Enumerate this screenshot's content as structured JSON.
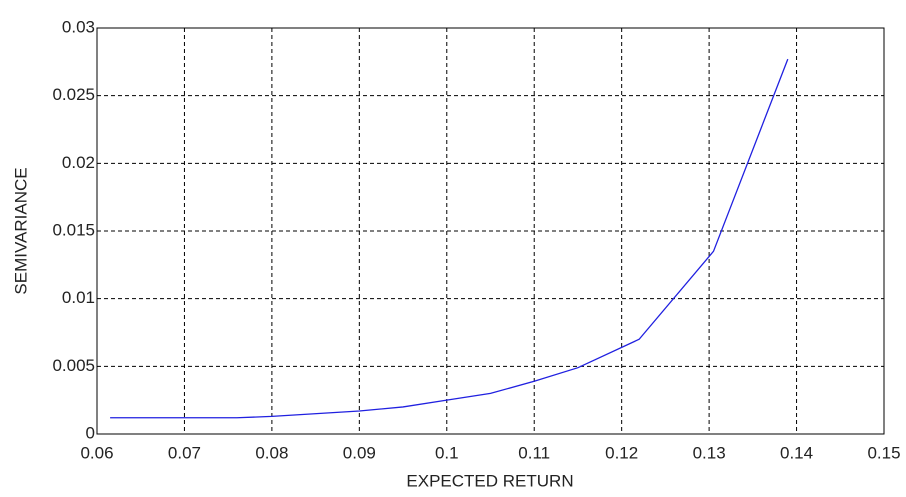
{
  "chart_data": {
    "type": "line",
    "xlabel": "EXPECTED RETURN",
    "ylabel": "SEMIVARIANCE",
    "x": [
      0.0615,
      0.076,
      0.08,
      0.09,
      0.095,
      0.1,
      0.105,
      0.11,
      0.115,
      0.122,
      0.1305,
      0.139
    ],
    "values": [
      0.0012,
      0.0012,
      0.0013,
      0.0017,
      0.002,
      0.0025,
      0.003,
      0.0039,
      0.0049,
      0.007,
      0.0135,
      0.0277
    ],
    "color": "#2020e0",
    "xlim": [
      0.06,
      0.15
    ],
    "xticks": [
      0.06,
      0.07,
      0.08,
      0.09,
      0.1,
      0.11,
      0.12,
      0.13,
      0.14,
      0.15
    ],
    "ylim": [
      0,
      0.03
    ],
    "yticks": [
      0,
      0.005,
      0.01,
      0.015,
      0.02,
      0.025,
      0.03
    ],
    "grid": true
  }
}
